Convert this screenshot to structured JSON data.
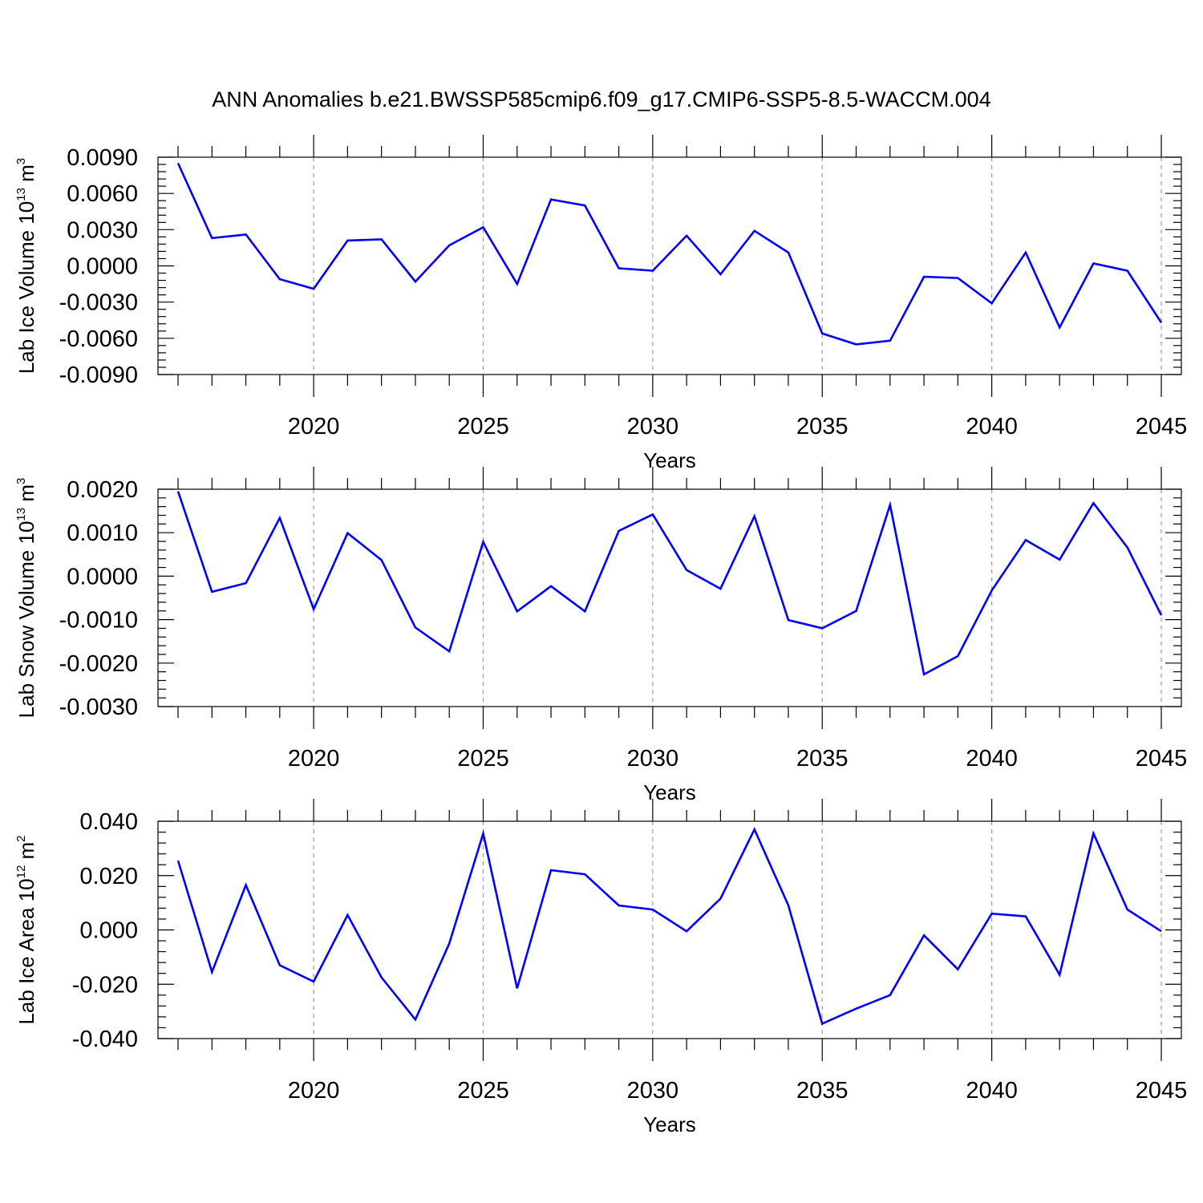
{
  "figure": {
    "title": "ANN Anomalies b.e21.BWSSP585cmip6.f09_g17.CMIP6-SSP5-8.5-WACCM.004"
  },
  "colors": {
    "line": "#0000ff",
    "axis": "#000000",
    "grid": "#999999"
  },
  "chart_data": [
    {
      "type": "line",
      "xlabel": "Years",
      "ylabel": {
        "main": "Lab Ice Volume 10",
        "exponent": "13",
        "unit": "m",
        "unit_exponent": "3"
      },
      "xlim": [
        2016,
        2045
      ],
      "ylim": [
        -0.009,
        0.009
      ],
      "xticks": [
        2020,
        2025,
        2030,
        2035,
        2040,
        2045
      ],
      "xtick_labels": [
        "2020",
        "2025",
        "2030",
        "2035",
        "2040",
        "2045"
      ],
      "yticks": [
        0.009,
        0.006,
        0.003,
        0.0,
        -0.003,
        -0.006,
        -0.009
      ],
      "ytick_labels": [
        "0.0090",
        "0.0060",
        "0.0030",
        "0.0000",
        "-0.0030",
        "-0.0060",
        "-0.0090"
      ],
      "grid": "vertical dashed at major x ticks",
      "series": [
        {
          "x": [
            2016,
            2017,
            2018,
            2019,
            2020,
            2021,
            2022,
            2023,
            2024,
            2025,
            2026,
            2027,
            2028,
            2029,
            2030,
            2031,
            2032,
            2033,
            2034,
            2035,
            2036,
            2037,
            2038,
            2039,
            2040,
            2041,
            2042,
            2043,
            2044,
            2045
          ],
          "values": [
            0.0085,
            0.0023,
            0.0026,
            -0.0011,
            -0.0019,
            0.0021,
            0.0022,
            -0.0013,
            0.0017,
            0.0032,
            -0.0015,
            0.0055,
            0.005,
            -0.0002,
            -0.0004,
            0.0025,
            -0.0007,
            0.0029,
            0.0011,
            -0.0056,
            -0.0065,
            -0.0062,
            -0.0009,
            -0.001,
            -0.0031,
            0.0011,
            -0.0051,
            0.0002,
            -0.0004,
            -0.0047
          ]
        }
      ]
    },
    {
      "type": "line",
      "xlabel": "Years",
      "ylabel": {
        "main": "Lab Snow Volume 10",
        "exponent": "13",
        "unit": "m",
        "unit_exponent": "3"
      },
      "xlim": [
        2016,
        2045
      ],
      "ylim": [
        -0.003,
        0.002
      ],
      "xticks": [
        2020,
        2025,
        2030,
        2035,
        2040,
        2045
      ],
      "xtick_labels": [
        "2020",
        "2025",
        "2030",
        "2035",
        "2040",
        "2045"
      ],
      "yticks": [
        0.002,
        0.001,
        0.0,
        -0.001,
        -0.002,
        -0.003
      ],
      "ytick_labels": [
        "0.0020",
        "0.0010",
        "0.0000",
        "-0.0010",
        "-0.0020",
        "-0.0030"
      ],
      "grid": "vertical dashed at major x ticks",
      "series": [
        {
          "x": [
            2016,
            2017,
            2018,
            2019,
            2020,
            2021,
            2022,
            2023,
            2024,
            2025,
            2026,
            2027,
            2028,
            2029,
            2030,
            2031,
            2032,
            2033,
            2034,
            2035,
            2036,
            2037,
            2038,
            2039,
            2040,
            2041,
            2042,
            2043,
            2044,
            2045
          ],
          "values": [
            0.00195,
            -0.00036,
            -0.00016,
            0.00134,
            -0.00076,
            0.00099,
            0.00037,
            -0.00118,
            -0.00173,
            0.00079,
            -0.00081,
            -0.00023,
            -0.00081,
            0.00104,
            0.00142,
            0.00014,
            -0.00029,
            0.00138,
            -0.00101,
            -0.0012,
            -0.0008,
            0.00164,
            -0.00226,
            -0.00184,
            -0.00033,
            0.00083,
            0.00038,
            0.00168,
            0.00066,
            -0.0009
          ]
        }
      ]
    },
    {
      "type": "line",
      "xlabel": "Years",
      "ylabel": {
        "main": "Lab Ice Area 10",
        "exponent": "12",
        "unit": "m",
        "unit_exponent": "2"
      },
      "xlim": [
        2016,
        2045
      ],
      "ylim": [
        -0.04,
        0.04
      ],
      "xticks": [
        2020,
        2025,
        2030,
        2035,
        2040,
        2045
      ],
      "xtick_labels": [
        "2020",
        "2025",
        "2030",
        "2035",
        "2040",
        "2045"
      ],
      "yticks": [
        0.04,
        0.02,
        0.0,
        -0.02,
        -0.04
      ],
      "ytick_labels": [
        "0.040",
        "0.020",
        "0.000",
        "-0.020",
        "-0.040"
      ],
      "grid": "vertical dashed at major x ticks",
      "series": [
        {
          "x": [
            2016,
            2017,
            2018,
            2019,
            2020,
            2021,
            2022,
            2023,
            2024,
            2025,
            2026,
            2027,
            2028,
            2029,
            2030,
            2031,
            2032,
            2033,
            2034,
            2035,
            2036,
            2037,
            2038,
            2039,
            2040,
            2041,
            2042,
            2043,
            2044,
            2045
          ],
          "values": [
            0.0255,
            -0.0155,
            0.0165,
            -0.013,
            -0.019,
            0.0055,
            -0.0175,
            -0.033,
            -0.005,
            0.0355,
            -0.0215,
            0.022,
            0.0205,
            0.009,
            0.0075,
            -0.0005,
            0.0115,
            0.037,
            0.009,
            -0.0345,
            -0.029,
            -0.024,
            -0.002,
            -0.0145,
            0.006,
            0.005,
            -0.0165,
            0.0355,
            0.0075,
            -0.0005
          ]
        }
      ]
    }
  ]
}
